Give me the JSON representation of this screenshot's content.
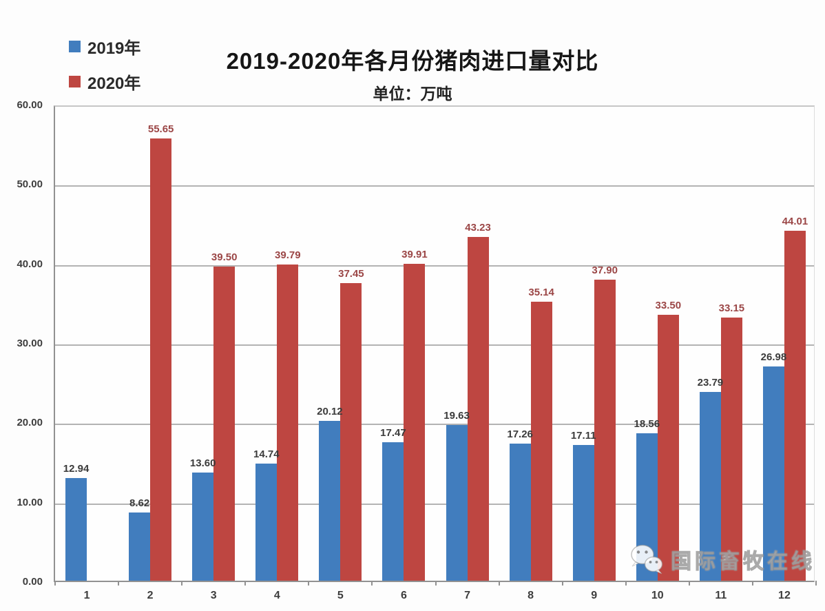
{
  "title": "2019-2020年各月份猪肉进口量对比",
  "subtitle": "单位：万吨",
  "legend": [
    {
      "label": "2019年",
      "color": "#417dbe"
    },
    {
      "label": "2020年",
      "color": "#be4641"
    }
  ],
  "watermark": {
    "text": "国际畜牧在线",
    "icon": "wechat-icon"
  },
  "colors": {
    "bar_2019": "#417dbe",
    "bar_2020": "#be4641",
    "label_2019": "#3b3b3b",
    "label_2020": "#9b4646",
    "axis_text": "#3d3d3d",
    "gridline": "#b3b3b3",
    "title_text": "#161616"
  },
  "chart_data": {
    "type": "bar",
    "categories": [
      "1",
      "2",
      "3",
      "4",
      "5",
      "6",
      "7",
      "8",
      "9",
      "10",
      "11",
      "12"
    ],
    "series": [
      {
        "name": "2019年",
        "color": "#417dbe",
        "label_color": "#3b3b3b",
        "values": [
          12.94,
          8.62,
          13.6,
          14.74,
          20.12,
          17.47,
          19.63,
          17.26,
          17.11,
          18.56,
          23.79,
          26.98
        ]
      },
      {
        "name": "2020年",
        "color": "#be4641",
        "label_color": "#9b4646",
        "values": [
          null,
          55.65,
          39.5,
          39.79,
          37.45,
          39.91,
          43.23,
          35.14,
          37.9,
          33.5,
          33.15,
          44.01
        ]
      }
    ],
    "xlabel": "",
    "ylabel": "",
    "ylim": [
      0,
      60
    ],
    "yticks": [
      0,
      10,
      20,
      30,
      40,
      50,
      60
    ],
    "ytick_labels": [
      "0.00",
      "10.00",
      "20.00",
      "30.00",
      "40.00",
      "50.00",
      "60.00"
    ],
    "grid": true,
    "data_labels": true,
    "legend_position": "top-left"
  }
}
